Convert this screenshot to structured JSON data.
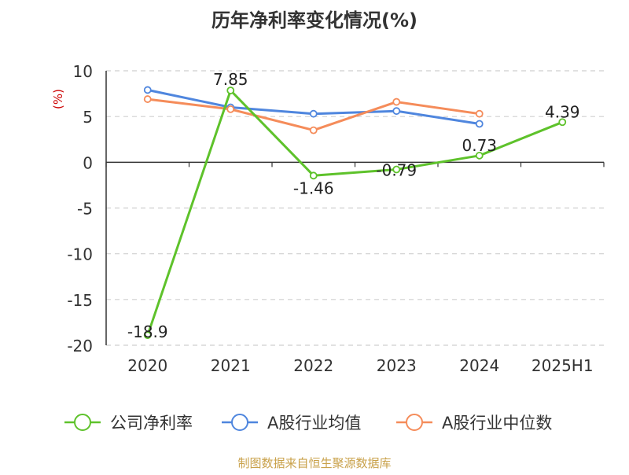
{
  "chart_data": {
    "type": "line",
    "title": "历年净利率变化情况(%)",
    "ylabel": "(%)",
    "xlabel": "",
    "categories": [
      "2020",
      "2021",
      "2022",
      "2023",
      "2024",
      "2025H1"
    ],
    "ylim": [
      -20,
      10
    ],
    "yticks": [
      10,
      5,
      0,
      -5,
      -10,
      -15,
      -20
    ],
    "grid": true,
    "legend_position": "bottom",
    "series": [
      {
        "name": "公司净利率",
        "color": "#5ec22b",
        "values": [
          -18.9,
          7.85,
          -1.46,
          -0.79,
          0.73,
          4.39
        ],
        "labels": [
          "-18.9",
          "7.85",
          "-1.46",
          "-0.79",
          "0.73",
          "4.39"
        ]
      },
      {
        "name": "A股行业均值",
        "color": "#4f86de",
        "values": [
          7.9,
          6.0,
          5.3,
          5.6,
          4.2,
          null
        ]
      },
      {
        "name": "A股行业中位数",
        "color": "#f58c5a",
        "values": [
          6.9,
          5.8,
          3.5,
          6.6,
          5.3,
          null
        ]
      }
    ],
    "source": "制图数据来自恒生聚源数据库"
  }
}
